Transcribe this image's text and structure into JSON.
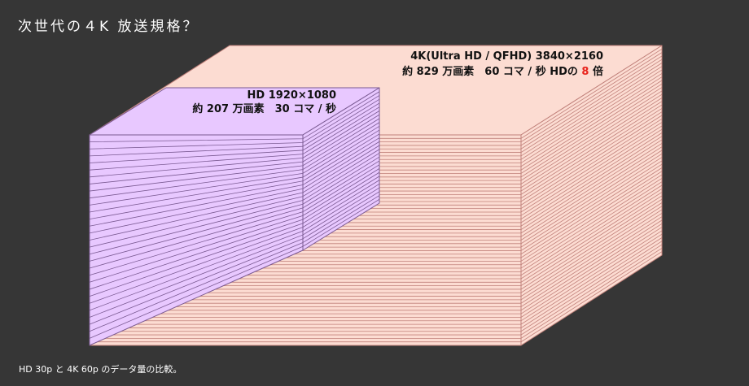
{
  "title": "次世代の４K 放送規格？",
  "caption": "HD 30p と 4K 60p のデータ量の比較。",
  "uhd_block": {
    "label_line1": "4K(Ultra HD / QFHD) 3840×2160",
    "label_line2_prefix": "約 829 万画素　60 コマ / 秒  HDの ",
    "label_multiplier": "8",
    "label_line2_suffix": " 倍",
    "frames_per_second": 60,
    "face_color": "#fcdcd2",
    "edge_color": "#c0807a",
    "accent_color": "#e8231c"
  },
  "hd_block": {
    "label_line1": "HD 1920×1080",
    "label_line2": "約 207 万画素　30 コマ / 秒",
    "frames_per_second": 30,
    "face_color": "#e8c8ff",
    "edge_color": "#7a5a92"
  },
  "colors": {
    "background": "#363636",
    "text": "#ffffff"
  }
}
